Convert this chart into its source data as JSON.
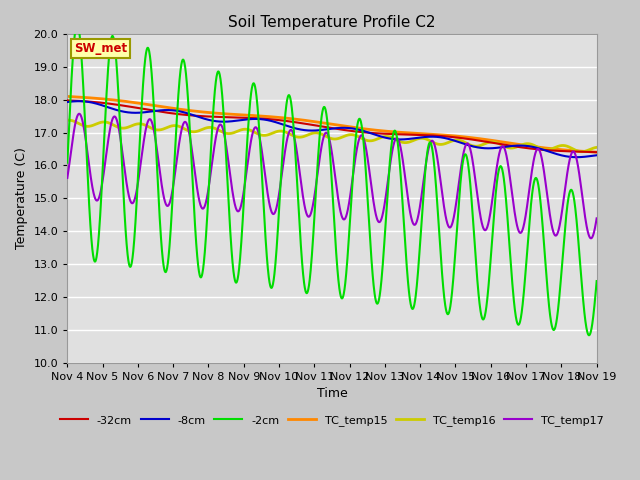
{
  "title": "Soil Temperature Profile C2",
  "xlabel": "Time",
  "ylabel": "Temperature (C)",
  "ylim": [
    10.0,
    20.0
  ],
  "ytick_labels": [
    "10.0",
    "11.0",
    "12.0",
    "13.0",
    "14.0",
    "15.0",
    "16.0",
    "17.0",
    "18.0",
    "19.0",
    "20.0"
  ],
  "xtick_labels": [
    "Nov 4",
    "Nov 5",
    "Nov 6",
    "Nov 7",
    "Nov 8",
    "Nov 9",
    "Nov 10",
    "Nov 11",
    "Nov 12",
    "Nov 13",
    "Nov 14",
    "Nov 15",
    "Nov 16",
    "Nov 17",
    "Nov 18",
    "Nov 19"
  ],
  "fig_facecolor": "#c8c8c8",
  "ax_facecolor": "#e0e0e0",
  "grid_color": "#ffffff",
  "series": {
    "neg32cm": {
      "color": "#cc0000",
      "label": "-32cm",
      "lw": 1.5,
      "zorder": 3
    },
    "neg8cm": {
      "color": "#0000cc",
      "label": "-8cm",
      "lw": 1.5,
      "zorder": 3
    },
    "neg2cm": {
      "color": "#00dd00",
      "label": "-2cm",
      "lw": 1.5,
      "zorder": 4
    },
    "TC15": {
      "color": "#ff8800",
      "label": "TC_temp15",
      "lw": 2.0,
      "zorder": 2
    },
    "TC16": {
      "color": "#cccc00",
      "label": "TC_temp16",
      "lw": 2.0,
      "zorder": 2
    },
    "TC17": {
      "color": "#9900cc",
      "label": "TC_temp17",
      "lw": 1.5,
      "zorder": 3
    }
  },
  "sw_met_label": "SW_met",
  "sw_met_facecolor": "#ffffaa",
  "sw_met_edgecolor": "#999900",
  "sw_met_textcolor": "#cc0000"
}
